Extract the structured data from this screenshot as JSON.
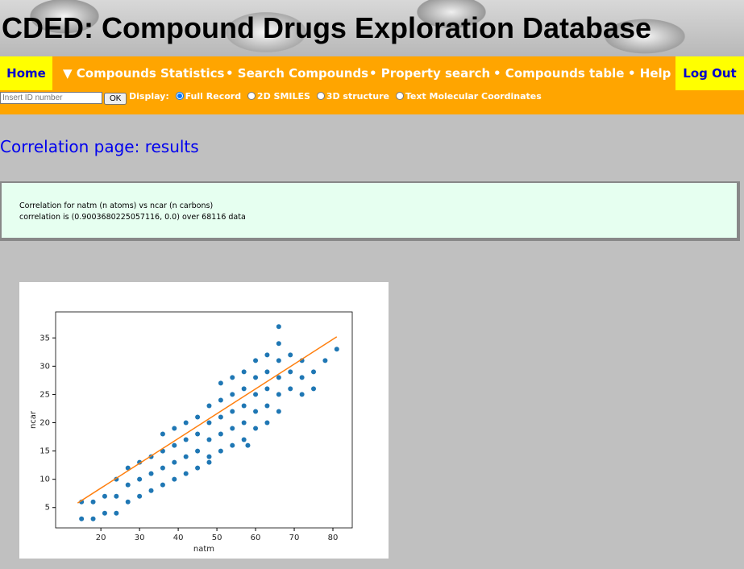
{
  "header": {
    "title": "CDED: Compound Drugs Exploration Database"
  },
  "nav": {
    "items": [
      "Home",
      "▼ Compounds Statistics",
      "• Search Compounds",
      "• Property search",
      "• Compounds table",
      "• Help",
      "Log Out"
    ]
  },
  "toolbar": {
    "input_placeholder": "Insert ID number",
    "button": "OK",
    "display_label": "Display:",
    "options": [
      "Full Record",
      "2D SMILES",
      "3D structure",
      "Text Molecular Coordinates"
    ]
  },
  "page_title": "Correlation page: results",
  "result": {
    "lines": [
      "Correlation for natm (n atoms) vs ncar (n carbons)",
      "correlation is (0.9003680225057116, 0.0) over 68116 data"
    ]
  },
  "chart_data": {
    "type": "scatter",
    "x_label": "natm",
    "y_label": "ncar",
    "xlim": [
      8.3,
      85
    ],
    "ylim": [
      1.4,
      39.6
    ],
    "xticks": [
      20,
      30,
      40,
      50,
      60,
      70,
      80
    ],
    "yticks": [
      5,
      10,
      15,
      20,
      25,
      30,
      35
    ],
    "series": [
      {
        "type": "scatter",
        "color": "#1f77b4",
        "x": [
          15,
          15,
          18,
          18,
          21,
          21,
          24,
          24,
          24,
          27,
          27,
          27,
          30,
          30,
          30,
          33,
          33,
          33,
          36,
          36,
          36,
          36,
          39,
          39,
          39,
          39,
          42,
          42,
          42,
          42,
          45,
          45,
          45,
          45,
          48,
          48,
          48,
          48,
          51,
          51,
          51,
          51,
          51,
          54,
          54,
          54,
          54,
          54,
          57,
          57,
          57,
          57,
          57,
          60,
          60,
          60,
          60,
          60,
          63,
          63,
          63,
          63,
          63,
          66,
          66,
          66,
          66,
          66,
          66,
          69,
          69,
          69,
          72,
          72,
          72,
          75,
          75,
          78,
          81,
          58,
          48
        ],
        "values": [
          3,
          6,
          3,
          6,
          4,
          7,
          4,
          7,
          10,
          6,
          9,
          12,
          7,
          10,
          13,
          8,
          11,
          14,
          9,
          12,
          15,
          18,
          10,
          13,
          16,
          19,
          11,
          14,
          17,
          20,
          12,
          15,
          18,
          21,
          14,
          17,
          20,
          23,
          15,
          18,
          21,
          24,
          27,
          16,
          19,
          22,
          25,
          28,
          17,
          20,
          23,
          26,
          29,
          19,
          22,
          25,
          28,
          31,
          20,
          23,
          26,
          29,
          32,
          22,
          25,
          28,
          31,
          34,
          37,
          26,
          29,
          32,
          25,
          28,
          31,
          26,
          29,
          31,
          33,
          16,
          13
        ]
      },
      {
        "type": "line",
        "color": "#ff7f0e",
        "x": [
          14,
          81
        ],
        "values": [
          5.8,
          35.2
        ]
      }
    ]
  }
}
